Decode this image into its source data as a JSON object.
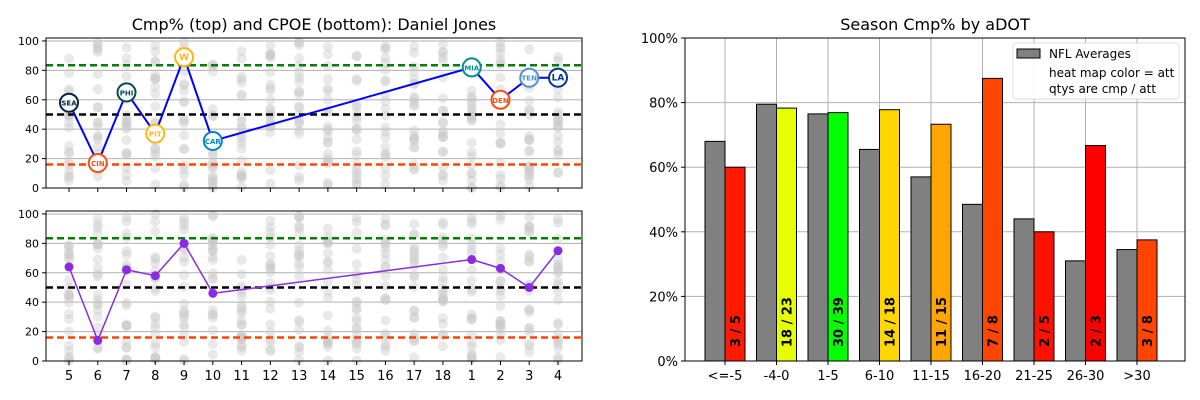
{
  "chart_data": [
    {
      "type": "line",
      "title": "Cmp% (top) and CPOE (bottom): Daniel Jones",
      "panels": [
        {
          "name": "top",
          "categories": [
            "5",
            "6",
            "7",
            "8",
            "9",
            "10",
            "11",
            "12",
            "13",
            "14",
            "15",
            "16",
            "17",
            "18",
            "1",
            "2",
            "3",
            "4"
          ],
          "ylim": [
            0,
            102
          ],
          "yticks": [
            0,
            20,
            40,
            60,
            80,
            100
          ],
          "grid": true,
          "line_color": "#0000ff",
          "points": [
            {
              "x": "5",
              "y": 58,
              "team": "SEA",
              "color": "#002244"
            },
            {
              "x": "6",
              "y": 17,
              "team": "CIN",
              "color": "#fb4f14"
            },
            {
              "x": "7",
              "y": 65,
              "team": "PHI",
              "color": "#004c54"
            },
            {
              "x": "8",
              "y": 37,
              "team": "PIT",
              "color": "#ffb612"
            },
            {
              "x": "9",
              "y": 89,
              "team": "W",
              "color": "#ffb612"
            },
            {
              "x": "10",
              "y": 32,
              "team": "CAR",
              "color": "#0085ca"
            },
            {
              "x": "1",
              "y": 82,
              "team": "MIA",
              "color": "#008e97"
            },
            {
              "x": "2",
              "y": 60,
              "team": "DEN",
              "color": "#fb4f14"
            },
            {
              "x": "3",
              "y": 75,
              "team": "TEN",
              "color": "#4b92db"
            },
            {
              "x": "4",
              "y": 75,
              "team": "LA",
              "color": "#003594"
            }
          ],
          "reference_lines": [
            {
              "y": 83.5,
              "color": "#008000"
            },
            {
              "y": 50,
              "color": "#000000"
            },
            {
              "y": 16,
              "color": "#ff4500"
            }
          ]
        },
        {
          "name": "bottom",
          "categories": [
            "5",
            "6",
            "7",
            "8",
            "9",
            "10",
            "11",
            "12",
            "13",
            "14",
            "15",
            "16",
            "17",
            "18",
            "1",
            "2",
            "3",
            "4"
          ],
          "ylim": [
            0,
            102
          ],
          "yticks": [
            0,
            20,
            40,
            60,
            80,
            100
          ],
          "grid": true,
          "line_color": "#8a2be2",
          "points": [
            {
              "x": "5",
              "y": 64
            },
            {
              "x": "6",
              "y": 14
            },
            {
              "x": "7",
              "y": 62
            },
            {
              "x": "8",
              "y": 58
            },
            {
              "x": "9",
              "y": 80
            },
            {
              "x": "10",
              "y": 46
            },
            {
              "x": "1",
              "y": 69
            },
            {
              "x": "2",
              "y": 63
            },
            {
              "x": "3",
              "y": 50
            },
            {
              "x": "4",
              "y": 75
            }
          ],
          "reference_lines": [
            {
              "y": 83.5,
              "color": "#008000"
            },
            {
              "y": 50,
              "color": "#000000"
            },
            {
              "y": 16,
              "color": "#ff4500"
            }
          ]
        }
      ]
    },
    {
      "type": "bar",
      "title": "Season Cmp% by aDOT",
      "categories": [
        "<=-5",
        "-4-0",
        "1-5",
        "6-10",
        "11-15",
        "16-20",
        "21-25",
        "26-30",
        ">30"
      ],
      "ylim": [
        0,
        100
      ],
      "yticks": [
        "0%",
        "20%",
        "40%",
        "60%",
        "80%",
        "100%"
      ],
      "grid": true,
      "legend": {
        "placement": "top-right",
        "entries": [
          "NFL Averages",
          "heat map color = att",
          "qtys are cmp / att"
        ]
      },
      "series": [
        {
          "name": "NFL Averages",
          "color": "#808080",
          "values": [
            68,
            79.5,
            76.5,
            65.5,
            57,
            48.5,
            44,
            31,
            34.5
          ]
        },
        {
          "values": [
            60,
            78.3,
            76.9,
            77.8,
            73.3,
            87.5,
            40,
            66.7,
            37.5
          ],
          "labels": [
            "3 / 5",
            "18 / 23",
            "30 / 39",
            "14 / 18",
            "11 / 15",
            "7 / 8",
            "2 / 5",
            "2 / 3",
            "3 / 8"
          ],
          "colors": [
            "#ff1a00",
            "#e5ff00",
            "#00ff00",
            "#ffd700",
            "#ffa500",
            "#ff4500",
            "#ff1100",
            "#ff0000",
            "#ff4500"
          ]
        }
      ]
    }
  ]
}
